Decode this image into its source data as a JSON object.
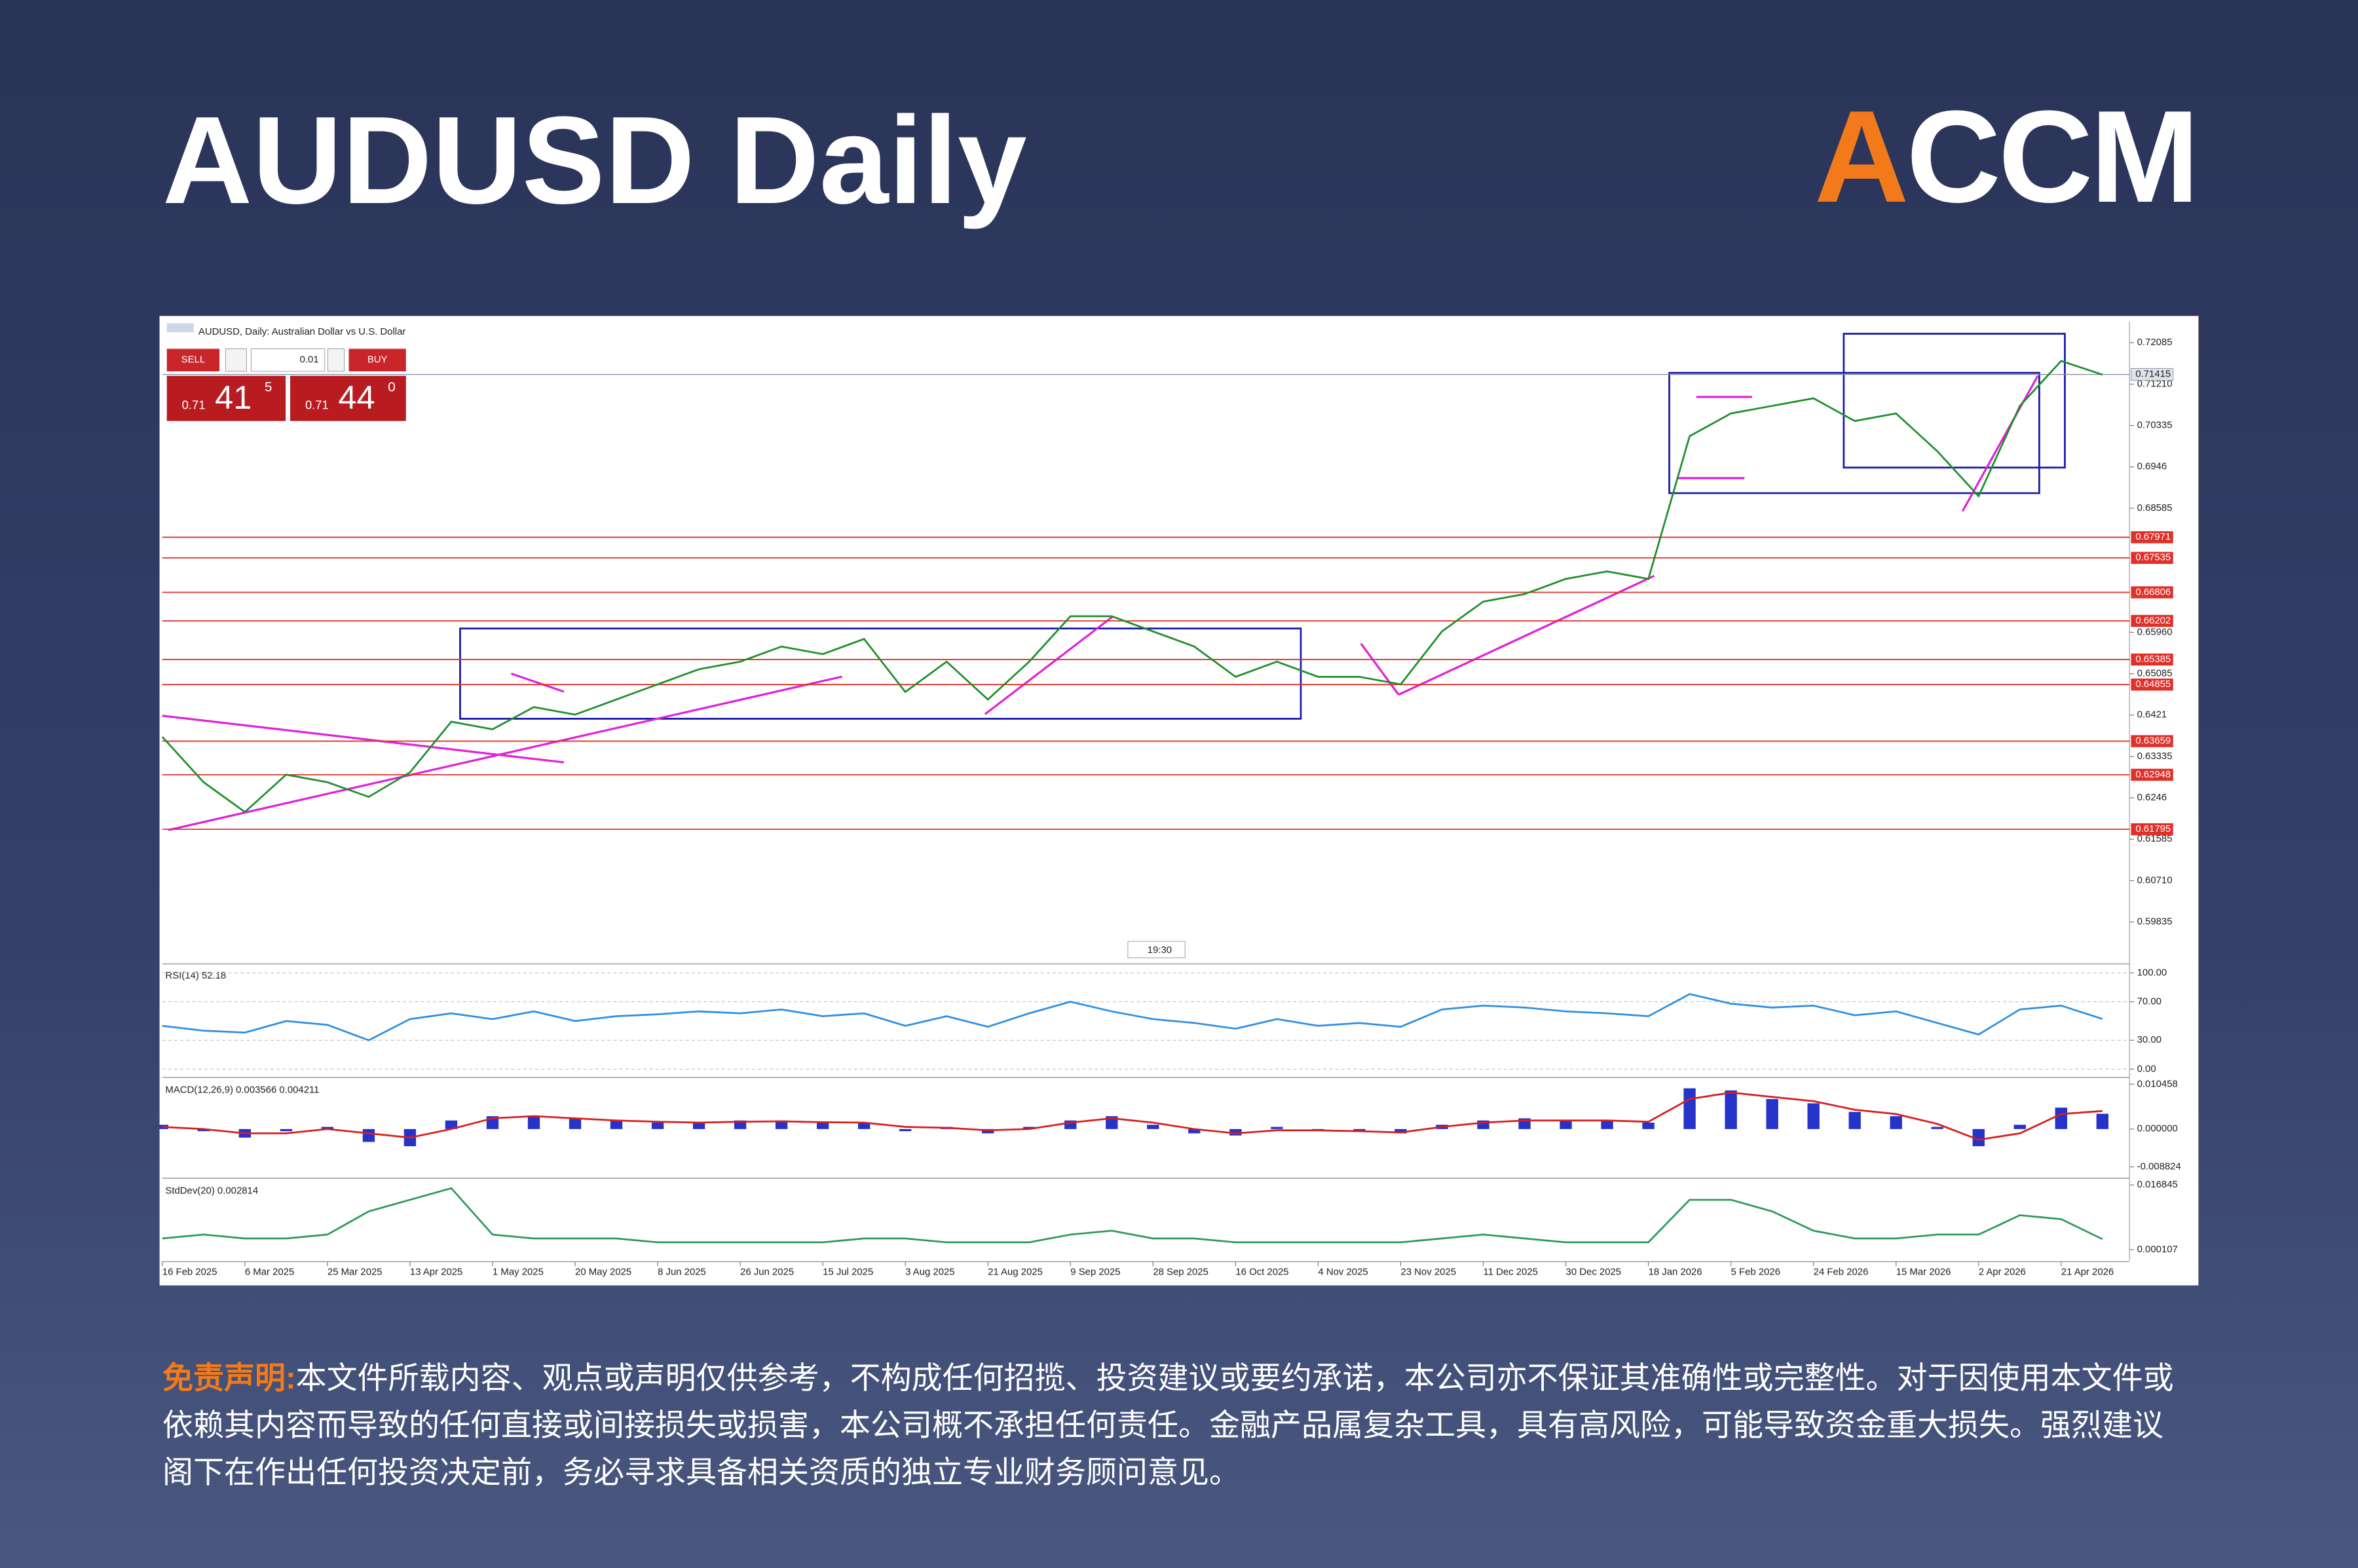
{
  "header": {
    "title": "AUDUSD Daily",
    "logo": "ACCM"
  },
  "trade_panel": {
    "sell": "SELL",
    "buy": "BUY",
    "lot": "0.01",
    "sell_price": [
      "0.71",
      "41",
      "5"
    ],
    "buy_price": [
      "0.71",
      "44",
      "0"
    ]
  },
  "chart_data": [
    {
      "type": "line",
      "title": "AUDUSD, Daily:  Australian Dollar vs U.S. Dollar",
      "time_marker": "19:30",
      "categories": [
        "16 Feb 2025",
        null,
        "6 Mar 2025",
        null,
        "25 Mar 2025",
        null,
        "13 Apr 2025",
        null,
        "1 May 2025",
        null,
        "20 May 2025",
        null,
        "8 Jun 2025",
        null,
        "26 Jun 2025",
        null,
        "15 Jul 2025",
        null,
        "3 Aug 2025",
        null,
        "21 Aug 2025",
        null,
        "9 Sep 2025",
        null,
        "28 Sep 2025",
        null,
        "16 Oct 2025",
        null,
        "4 Nov 2025",
        null,
        "23 Nov 2025",
        null,
        "11 Dec 2025",
        null,
        "30 Dec 2025",
        null,
        "18 Jan 2026",
        null,
        "5 Feb 2026",
        null,
        "24 Feb 2026",
        null,
        "15 Mar 2026",
        null,
        "2 Apr 2026",
        null,
        "21 Apr 2026",
        null
      ],
      "values": [
        0.6375,
        0.6279,
        0.6216,
        0.6295,
        0.6279,
        0.6248,
        0.63,
        0.6407,
        0.6391,
        0.6438,
        0.6422,
        0.6454,
        0.6486,
        0.6518,
        0.6534,
        0.6566,
        0.655,
        0.6582,
        0.647,
        0.6534,
        0.6454,
        0.6534,
        0.663,
        0.663,
        0.6598,
        0.6566,
        0.6502,
        0.6534,
        0.6502,
        0.6502,
        0.6486,
        0.6598,
        0.6661,
        0.6677,
        0.6709,
        0.6725,
        0.6709,
        0.7011,
        0.7059,
        0.7075,
        0.7091,
        0.7043,
        0.7059,
        0.6979,
        0.6884,
        0.7075,
        0.717,
        0.7141
      ],
      "color": "#1f8f2a",
      "ylim": [
        0.5898,
        0.7253
      ],
      "yticks": [
        0.72085,
        {
          "value": 0.7121,
          "label": "0.71210"
        },
        0.70335,
        0.6946,
        0.68585,
        {
          "value": 0.6596,
          "label": "0.65960"
        },
        0.65085,
        0.6421,
        0.63335,
        0.6246,
        0.61585,
        {
          "value": 0.6071,
          "label": "0.60710"
        },
        0.59835
      ],
      "levels": [
        0.67971,
        0.67535,
        0.66806,
        0.66202,
        0.65385,
        0.64855,
        0.63659,
        0.62948,
        0.61795
      ],
      "level_color": "#e0302a",
      "current_price": 0.71415
    },
    {
      "type": "line",
      "label": "RSI(14) 52.18",
      "values": [
        45,
        40,
        38,
        50,
        46,
        30,
        52,
        58,
        52,
        60,
        50,
        55,
        57,
        60,
        58,
        62,
        55,
        58,
        45,
        55,
        44,
        58,
        70,
        60,
        52,
        48,
        42,
        52,
        45,
        48,
        44,
        62,
        66,
        64,
        60,
        58,
        55,
        78,
        68,
        64,
        66,
        56,
        60,
        48,
        36,
        62,
        66,
        52.18
      ],
      "color": "#2f8fe0",
      "grid": true,
      "ylim": [
        -6.25,
        107.8
      ],
      "yticks": [
        {
          "value": 100,
          "label": "100.00"
        },
        {
          "value": 70,
          "label": "70.00"
        },
        {
          "value": 30,
          "label": "30.00"
        },
        {
          "value": 0,
          "label": "0.00"
        }
      ]
    },
    {
      "type": "bar",
      "label": "MACD(12,26,9) 0.003566 0.004211",
      "values": [
        0.001,
        -0.0005,
        -0.002,
        -0.0005,
        0.0005,
        -0.003,
        -0.004,
        0.002,
        0.003,
        0.003,
        0.0025,
        0.002,
        0.0015,
        0.0015,
        0.002,
        0.002,
        0.0015,
        0.0015,
        -0.0005,
        0.0005,
        -0.001,
        0.0005,
        0.002,
        0.003,
        0.001,
        -0.001,
        -0.0015,
        0.0005,
        -0.0005,
        -0.0005,
        -0.001,
        0.001,
        0.002,
        0.0025,
        0.002,
        0.002,
        0.0015,
        0.0095,
        0.009,
        0.007,
        0.006,
        0.004,
        0.003,
        0.0005,
        -0.004,
        0.001,
        0.005,
        0.003566
      ],
      "color": "#2633c8",
      "signal": {
        "values": [
          0.0005,
          0,
          -0.001,
          -0.001,
          0,
          -0.001,
          -0.002,
          0,
          0.0025,
          0.003,
          0.0025,
          0.002,
          0.0017,
          0.0015,
          0.0017,
          0.0018,
          0.0016,
          0.0015,
          0.0005,
          0.0003,
          -0.0003,
          0,
          0.0015,
          0.0025,
          0.0015,
          0,
          -0.001,
          -0.0003,
          -0.0003,
          -0.0005,
          -0.0008,
          0.0005,
          0.0015,
          0.002,
          0.002,
          0.002,
          0.0017,
          0.007,
          0.0085,
          0.0075,
          0.0065,
          0.0045,
          0.0035,
          0.0012,
          -0.0025,
          -0.001,
          0.0035,
          0.004211
        ],
        "color": "#d81e1e"
      },
      "ylim": [
        -0.010928,
        0.01151
      ],
      "yticks": [
        0.010458,
        {
          "value": 0,
          "label": "0.000000"
        },
        -0.008824
      ]
    },
    {
      "type": "line",
      "label": "StdDev(20) 0.002814",
      "values": [
        0.003,
        0.004,
        0.003,
        0.003,
        0.004,
        0.01,
        0.013,
        0.016,
        0.004,
        0.003,
        0.003,
        0.003,
        0.002,
        0.002,
        0.002,
        0.002,
        0.002,
        0.003,
        0.003,
        0.002,
        0.002,
        0.002,
        0.004,
        0.005,
        0.003,
        0.003,
        0.002,
        0.002,
        0.002,
        0.002,
        0.002,
        0.003,
        0.004,
        0.003,
        0.002,
        0.002,
        0.002,
        0.013,
        0.013,
        0.01,
        0.005,
        0.003,
        0.003,
        0.004,
        0.004,
        0.009,
        0.008,
        0.002814
      ],
      "color": "#2e9a5a",
      "ylim": [
        -0.002618,
        0.018013
      ],
      "yticks": [
        0.016845,
        0.000107
      ]
    }
  ],
  "disclaimer": {
    "label": "免责声明:",
    "text": "本文件所载内容、观点或声明仅供参考，不构成任何招揽、投资建议或要约承诺，本公司亦不保证其准确性或完整性。对于因使用本文件或依赖其内容而导致的任何直接或间接损失或损害，本公司概不承担任何责任。金融产品属复杂工具，具有高风险，可能导致资金重大损失。强烈建议阁下在作出任何投资决定前，务必寻求具备相关资质的独立专业财务顾问意见。"
  }
}
